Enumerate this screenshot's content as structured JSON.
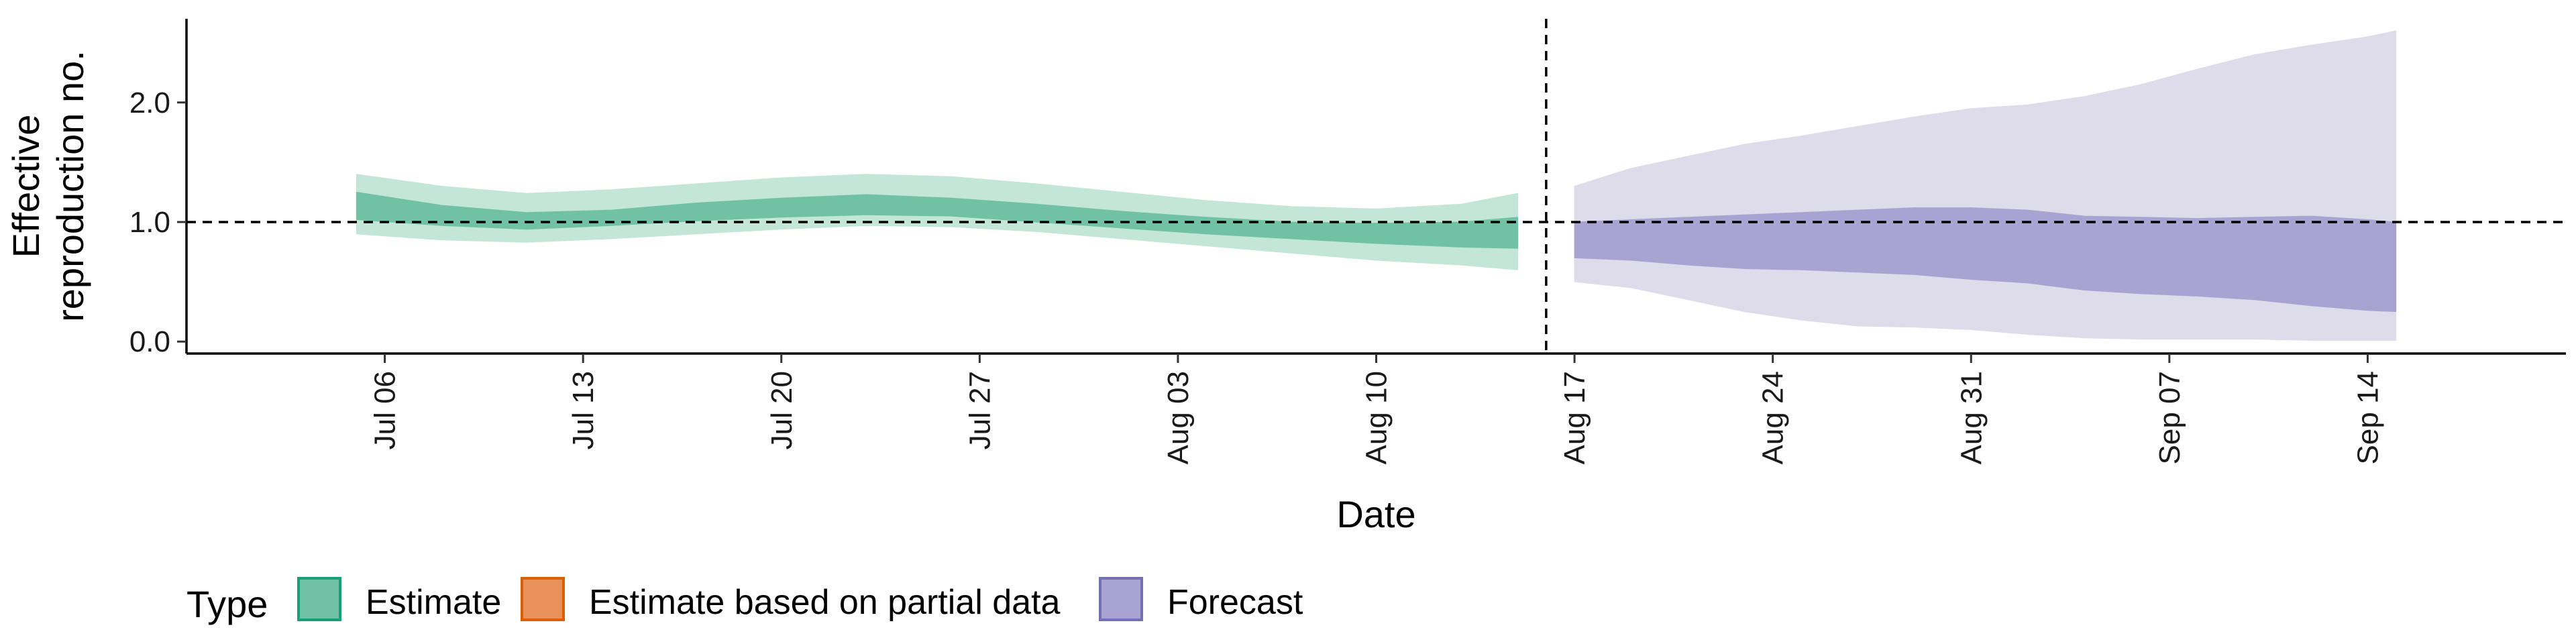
{
  "chart_data": {
    "type": "area",
    "xlabel": "Date",
    "ylabel_lines": [
      "Effective",
      "reproduction no."
    ],
    "y_ticks": [
      0.0,
      1.0,
      2.0
    ],
    "y_tick_labels": [
      "0.0",
      "1.0",
      "2.0"
    ],
    "ylim": [
      -0.1,
      2.7
    ],
    "x_ticks": [
      "2020-07-06",
      "2020-07-13",
      "2020-07-20",
      "2020-07-27",
      "2020-08-03",
      "2020-08-10",
      "2020-08-17",
      "2020-08-24",
      "2020-08-31",
      "2020-09-07",
      "2020-09-14"
    ],
    "x_tick_labels": [
      "Jul 06",
      "Jul 13",
      "Jul 20",
      "Jul 27",
      "Aug 03",
      "Aug 10",
      "Aug 17",
      "Aug 24",
      "Aug 31",
      "Sep 07",
      "Sep 14"
    ],
    "xlim": [
      "2020-06-29",
      "2020-09-21"
    ],
    "reference_hline": 1.0,
    "reference_vline": "2020-08-16",
    "colors": {
      "estimate_outer": "#c3e6d9",
      "estimate_inner": "#70c1a5",
      "estimate_line": "#1b9e77",
      "partial": "#e8925a",
      "partial_line": "#d95f02",
      "forecast_outer": "#dedbea",
      "forecast_inner": "#a9a3d2",
      "forecast_line": "#7570b3"
    },
    "legend": {
      "title": "Type",
      "position": "bottom",
      "items": [
        {
          "label": "Estimate",
          "key": "estimate"
        },
        {
          "label": "Estimate based on partial data",
          "key": "partial"
        },
        {
          "label": "Forecast",
          "key": "forecast"
        }
      ]
    },
    "series": [
      {
        "key": "estimate",
        "x": [
          "2020-07-05",
          "2020-07-08",
          "2020-07-11",
          "2020-07-14",
          "2020-07-17",
          "2020-07-20",
          "2020-07-23",
          "2020-07-26",
          "2020-07-29",
          "2020-08-01",
          "2020-08-04",
          "2020-08-07",
          "2020-08-10",
          "2020-08-13",
          "2020-08-15"
        ],
        "outer_lo": [
          0.9,
          0.85,
          0.83,
          0.86,
          0.9,
          0.94,
          0.97,
          0.96,
          0.92,
          0.86,
          0.8,
          0.74,
          0.68,
          0.64,
          0.6
        ],
        "outer_hi": [
          1.4,
          1.3,
          1.24,
          1.27,
          1.32,
          1.37,
          1.4,
          1.38,
          1.32,
          1.25,
          1.18,
          1.13,
          1.11,
          1.15,
          1.24
        ],
        "inner_lo": [
          1.02,
          0.97,
          0.94,
          0.97,
          1.01,
          1.04,
          1.06,
          1.05,
          1.0,
          0.95,
          0.9,
          0.86,
          0.82,
          0.79,
          0.78
        ],
        "inner_hi": [
          1.25,
          1.14,
          1.08,
          1.1,
          1.16,
          1.2,
          1.23,
          1.2,
          1.15,
          1.09,
          1.04,
          1.0,
          0.99,
          1.0,
          1.04
        ]
      },
      {
        "key": "forecast",
        "x": [
          "2020-08-17",
          "2020-08-19",
          "2020-08-21",
          "2020-08-23",
          "2020-08-25",
          "2020-08-27",
          "2020-08-29",
          "2020-08-31",
          "2020-09-02",
          "2020-09-04",
          "2020-09-06",
          "2020-09-08",
          "2020-09-10",
          "2020-09-12",
          "2020-09-14",
          "2020-09-15"
        ],
        "outer_lo": [
          0.5,
          0.45,
          0.35,
          0.25,
          0.18,
          0.13,
          0.12,
          0.1,
          0.06,
          0.03,
          0.02,
          0.02,
          0.02,
          0.01,
          0.01,
          0.01
        ],
        "outer_hi": [
          1.3,
          1.45,
          1.55,
          1.65,
          1.72,
          1.8,
          1.88,
          1.95,
          1.98,
          2.05,
          2.15,
          2.28,
          2.4,
          2.48,
          2.55,
          2.6
        ],
        "inner_lo": [
          0.7,
          0.68,
          0.64,
          0.61,
          0.6,
          0.58,
          0.56,
          0.52,
          0.49,
          0.43,
          0.4,
          0.38,
          0.35,
          0.3,
          0.26,
          0.25
        ],
        "inner_hi": [
          1.0,
          1.02,
          1.04,
          1.06,
          1.08,
          1.1,
          1.12,
          1.12,
          1.1,
          1.05,
          1.04,
          1.03,
          1.04,
          1.05,
          1.02,
          1.0
        ]
      }
    ]
  }
}
